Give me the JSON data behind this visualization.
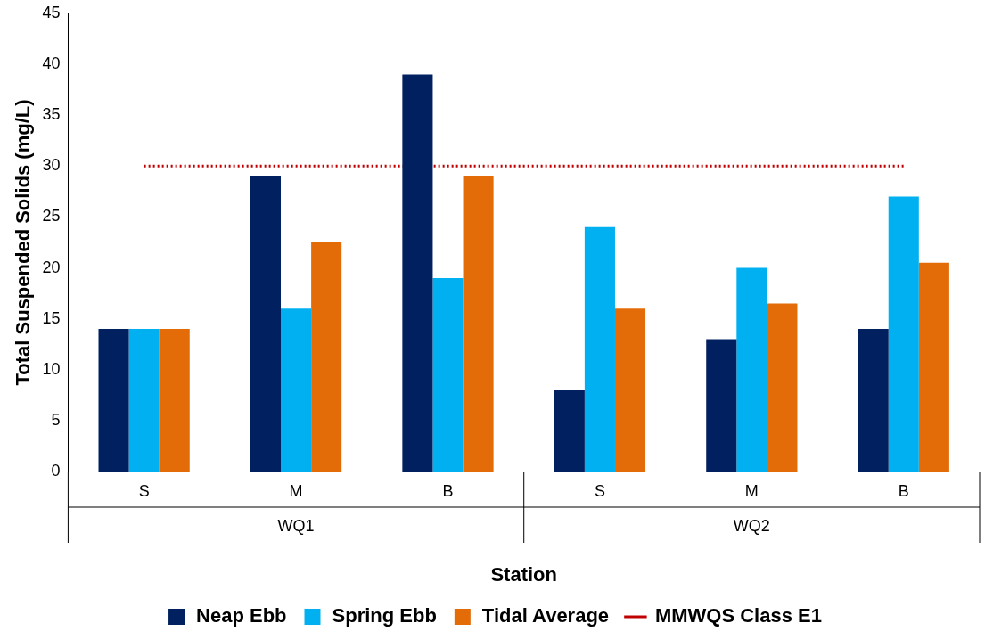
{
  "chart_data": {
    "type": "bar",
    "xlabel": "Station",
    "ylabel": "Total Suspended Solids (mg/L)",
    "categories": [
      "S",
      "M",
      "B",
      "S",
      "M",
      "B"
    ],
    "annotations": [
      "WQ1",
      "WQ2"
    ],
    "series": [
      {
        "name": "Neap Ebb",
        "color": "#002060",
        "values": [
          14,
          29,
          39,
          8,
          13,
          14
        ]
      },
      {
        "name": "Spring Ebb",
        "color": "#00b0f0",
        "values": [
          14,
          16,
          19,
          24,
          20,
          27
        ]
      },
      {
        "name": "Tidal Average",
        "color": "#e36c09",
        "values": [
          14,
          22.5,
          29,
          16,
          16.5,
          20.5
        ]
      }
    ],
    "ref_lines": [
      {
        "axis": "y",
        "value": 30,
        "label": "MMWQS Class E1",
        "color": "#c00000",
        "line_style": "dotted"
      }
    ],
    "ylim": [
      0,
      45
    ],
    "yticks": [
      0,
      5,
      10,
      15,
      20,
      25,
      30,
      35,
      40,
      45
    ],
    "grid": false,
    "legend": "bottom"
  }
}
